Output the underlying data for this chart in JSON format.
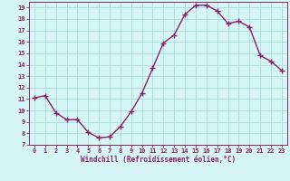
{
  "x": [
    0,
    1,
    2,
    3,
    4,
    5,
    6,
    7,
    8,
    9,
    10,
    11,
    12,
    13,
    14,
    15,
    16,
    17,
    18,
    19,
    20,
    21,
    22,
    23
  ],
  "y": [
    11.1,
    11.3,
    9.8,
    9.2,
    9.2,
    8.1,
    7.6,
    7.7,
    8.6,
    9.9,
    11.5,
    13.7,
    15.9,
    16.6,
    18.4,
    19.2,
    19.2,
    18.7,
    17.6,
    17.8,
    17.3,
    14.8,
    14.3,
    13.5
  ],
  "line_color": "#882266",
  "marker": "+",
  "marker_size": 4,
  "line_width": 1.0,
  "bg_color": "#d6f5f5",
  "grid_color": "#aadddd",
  "xlabel": "Windchill (Refroidissement éolien,°C)",
  "xlabel_color": "#882266",
  "tick_color": "#882266",
  "ylim": [
    7,
    19.5
  ],
  "xlim": [
    -0.5,
    23.5
  ],
  "yticks": [
    7,
    8,
    9,
    10,
    11,
    12,
    13,
    14,
    15,
    16,
    17,
    18,
    19
  ],
  "xticks": [
    0,
    1,
    2,
    3,
    4,
    5,
    6,
    7,
    8,
    9,
    10,
    11,
    12,
    13,
    14,
    15,
    16,
    17,
    18,
    19,
    20,
    21,
    22,
    23
  ],
  "spine_color": "#882266",
  "tick_fontsize": 5.0,
  "xlabel_fontsize": 5.5,
  "markeredgewidth": 1.0
}
